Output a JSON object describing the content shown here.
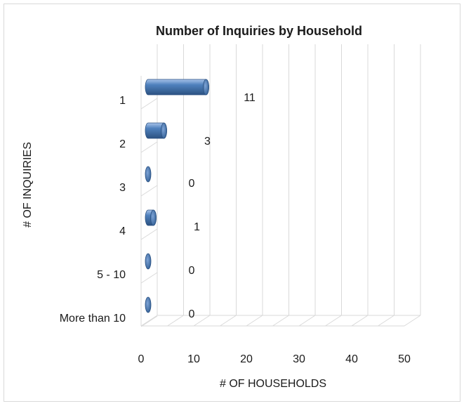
{
  "chart_data": {
    "type": "bar",
    "orientation": "horizontal",
    "style": "3d-cylinder",
    "title": "Number of Inquiries by Household",
    "xlabel": "# OF HOUSEHOLDS",
    "ylabel": "# OF INQUIRIES",
    "categories": [
      "1",
      "2",
      "3",
      "4",
      "5 - 10",
      "More than 10"
    ],
    "values": [
      11,
      3,
      0,
      1,
      0,
      0
    ],
    "data_labels": [
      "11",
      "3",
      "0",
      "1",
      "0",
      "0"
    ],
    "xlim": [
      0,
      50
    ],
    "xticks": [
      "0",
      "10",
      "20",
      "30",
      "40",
      "50"
    ],
    "x_tick_values": [
      0,
      10,
      20,
      30,
      40,
      50
    ],
    "grid": true,
    "legend": "none",
    "bar_color": "#4f81bd"
  }
}
